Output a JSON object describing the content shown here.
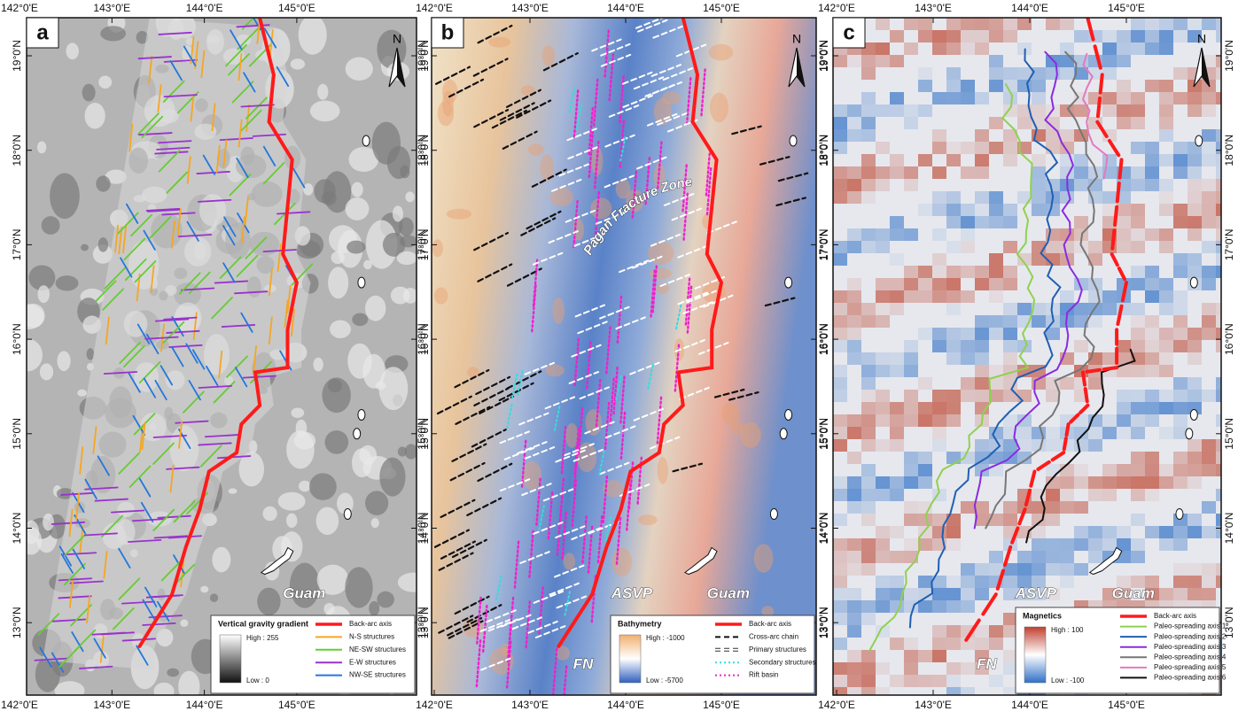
{
  "panels": [
    {
      "label": "a",
      "north": "N",
      "lon_ticks": [
        "142°0'E",
        "143°0'E",
        "144°0'E",
        "145°0'E"
      ],
      "lat_ticks": [
        "19°0'N",
        "18°0'N",
        "17°0'N",
        "16°0'N",
        "15°0'N",
        "14°0'N",
        "13°0'N"
      ],
      "legend": {
        "title": "Vertical gravity gradient",
        "high": "High : 255",
        "low": "Low : 0",
        "colorbar": [
          "#ffffff",
          "#111111"
        ],
        "items": [
          {
            "label": "Back-arc axis",
            "color": "#ff1a1a",
            "style": "solid"
          },
          {
            "label": "N-S structures",
            "color": "#f5a623",
            "style": "solid"
          },
          {
            "label": "NE-SW structures",
            "color": "#66cc33",
            "style": "solid"
          },
          {
            "label": "E-W structures",
            "color": "#9933cc",
            "style": "solid"
          },
          {
            "label": "NW-SE structures",
            "color": "#2277dd",
            "style": "solid"
          }
        ]
      },
      "annotations": [
        "Guam"
      ]
    },
    {
      "label": "b",
      "north": "N",
      "lon_ticks": [
        "142°0'E",
        "143°0'E",
        "144°0'E",
        "145°0'E"
      ],
      "lat_ticks": [
        "19°0'N",
        "18°0'N",
        "17°0'N",
        "16°0'N",
        "15°0'N",
        "14°0'N",
        "13°0'N"
      ],
      "legend": {
        "title": "Bathymetry",
        "high": "High : -1000",
        "low": "Low : -5700",
        "colorbar": [
          "#f0b070",
          "#ffffff",
          "#3060c0"
        ],
        "items": [
          {
            "label": "Back-arc axis",
            "color": "#ff1a1a",
            "style": "solid"
          },
          {
            "label": "Cross-arc chain",
            "color": "#111111",
            "style": "dashed"
          },
          {
            "label": "Primary structures",
            "color": "#ffffff",
            "style": "dashed"
          },
          {
            "label": "Secondary structures",
            "color": "#33dddd",
            "style": "dotted"
          },
          {
            "label": "Rift basin",
            "color": "#ee22cc",
            "style": "dotted"
          }
        ]
      },
      "annotations": [
        "Pagan Fracture Zone",
        "ASVP",
        "FN",
        "Guam"
      ]
    },
    {
      "label": "c",
      "north": "N",
      "lon_ticks": [
        "142°0'E",
        "143°0'E",
        "144°0'E",
        "145°0'E"
      ],
      "lat_ticks": [
        "19°0'N",
        "18°0'N",
        "17°0'N",
        "16°0'N",
        "15°0'N",
        "14°0'N",
        "13°0'N"
      ],
      "legend": {
        "title": "Magnetics",
        "high": "High : 100",
        "low": "Low : -100",
        "colorbar": [
          "#c04030",
          "#ffffff",
          "#3070c8"
        ],
        "items": [
          {
            "label": "Back-arc axis",
            "color": "#ff1a1a",
            "style": "solid"
          },
          {
            "label": "Paleo-spreading axis 1",
            "color": "#8fd14f",
            "style": "solid"
          },
          {
            "label": "Paleo-spreading axis 2",
            "color": "#1f5fb4",
            "style": "solid"
          },
          {
            "label": "Paleo-spreading axis 3",
            "color": "#8a2be2",
            "style": "solid"
          },
          {
            "label": "Paleo-spreading axis 4",
            "color": "#777777",
            "style": "solid"
          },
          {
            "label": "Paleo-spreading axis 5",
            "color": "#e07bc0",
            "style": "solid"
          },
          {
            "label": "Paleo-spreading axis 6",
            "color": "#111111",
            "style": "solid"
          }
        ]
      },
      "annotations": [
        "ASVP",
        "FN",
        "Guam"
      ]
    }
  ]
}
